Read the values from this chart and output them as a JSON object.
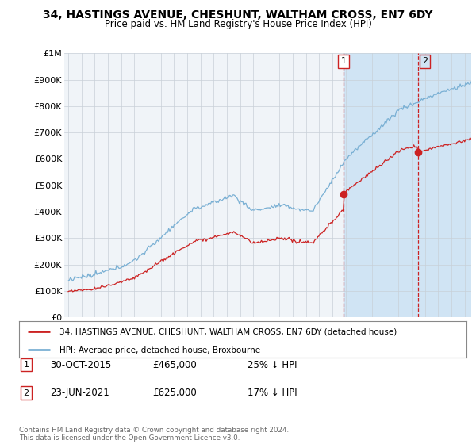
{
  "title": "34, HASTINGS AVENUE, CHESHUNT, WALTHAM CROSS, EN7 6DY",
  "subtitle": "Price paid vs. HM Land Registry's House Price Index (HPI)",
  "ylim": [
    0,
    1000000
  ],
  "yticks": [
    0,
    100000,
    200000,
    300000,
    400000,
    500000,
    600000,
    700000,
    800000,
    900000,
    1000000
  ],
  "ytick_labels": [
    "£0",
    "£100K",
    "£200K",
    "£300K",
    "£400K",
    "£500K",
    "£600K",
    "£700K",
    "£800K",
    "£900K",
    "£1M"
  ],
  "hpi_color": "#7ab0d4",
  "price_color": "#cc2222",
  "sale1_year": 2015.83,
  "sale1_price": 465000,
  "sale2_year": 2021.47,
  "sale2_price": 625000,
  "legend_house": "34, HASTINGS AVENUE, CHESHUNT, WALTHAM CROSS, EN7 6DY (detached house)",
  "legend_hpi": "HPI: Average price, detached house, Broxbourne",
  "note1_label": "1",
  "note1_date": "30-OCT-2015",
  "note1_price": "£465,000",
  "note1_hpi": "25% ↓ HPI",
  "note2_label": "2",
  "note2_date": "23-JUN-2021",
  "note2_price": "£625,000",
  "note2_hpi": "17% ↓ HPI",
  "copyright": "Contains HM Land Registry data © Crown copyright and database right 2024.\nThis data is licensed under the Open Government Licence v3.0.",
  "bg_color": "#ffffff",
  "plot_bg": "#f0f4f8",
  "shaded_region_color": "#d0e4f4",
  "xmin": 1994.7,
  "xmax": 2025.5
}
